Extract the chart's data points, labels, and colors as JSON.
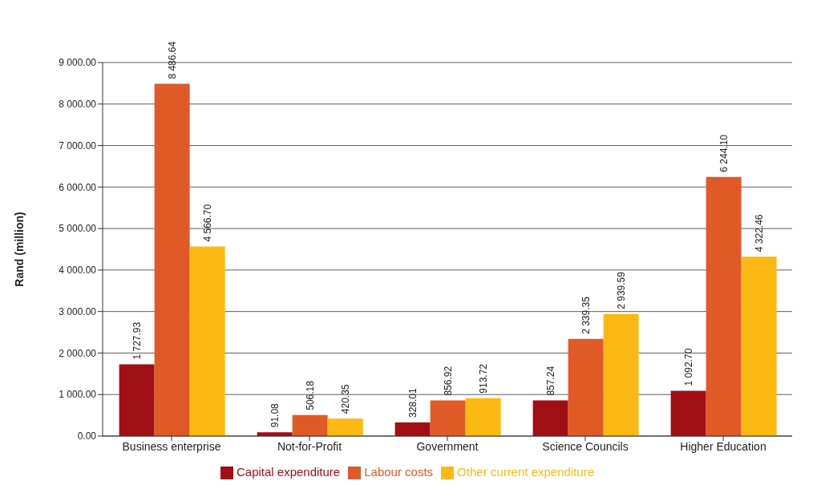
{
  "chart_data": {
    "type": "bar",
    "ylabel": "Rand (million)",
    "categories": [
      "Business enterprise",
      "Not-for-Profit",
      "Government",
      "Science Councils",
      "Higher Education"
    ],
    "series": [
      {
        "name": "Capital expenditure",
        "color": "#a00f14",
        "values": [
          1727.93,
          91.08,
          328.01,
          857.24,
          1092.7
        ],
        "value_labels": [
          "1 727.93",
          "91.08",
          "328.01",
          "857.24",
          "1 092.70"
        ]
      },
      {
        "name": "Labour costs",
        "color": "#e05a28",
        "values": [
          8486.64,
          506.18,
          856.92,
          2339.35,
          6244.1
        ],
        "value_labels": [
          "8 486.64",
          "506.18",
          "856.92",
          "2 339.35",
          "6 244.10"
        ]
      },
      {
        "name": "Other current expenditure",
        "color": "#fdb913",
        "values": [
          4566.7,
          420.35,
          913.72,
          2939.59,
          4322.46
        ],
        "value_labels": [
          "4 566.70",
          "420.35",
          "913.72",
          "2 939.59",
          "4 322.46"
        ]
      }
    ],
    "ylim": [
      0,
      9000
    ],
    "yticks": [
      {
        "value": 0,
        "label": "0.00"
      },
      {
        "value": 1000,
        "label": "1 000.00"
      },
      {
        "value": 2000,
        "label": "2 000.00"
      },
      {
        "value": 3000,
        "label": "3 000.00"
      },
      {
        "value": 4000,
        "label": "4 000.00"
      },
      {
        "value": 5000,
        "label": "5 000.00"
      },
      {
        "value": 6000,
        "label": "6 000.00"
      },
      {
        "value": 7000,
        "label": "7 000.00"
      },
      {
        "value": 8000,
        "label": "8 000.00"
      },
      {
        "value": 9000,
        "label": "9 000.00"
      }
    ],
    "grid": "y",
    "legend": "bottom"
  }
}
